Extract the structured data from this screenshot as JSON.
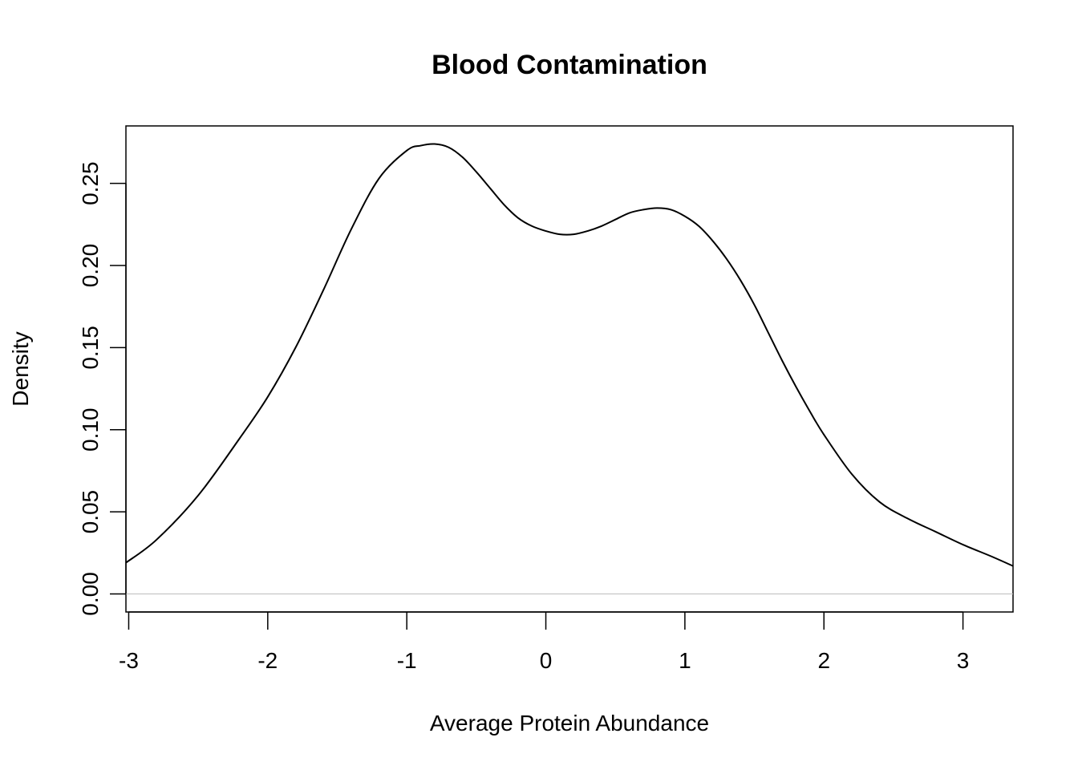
{
  "chart_data": {
    "type": "line",
    "title": "Blood Contamination",
    "xlabel": "Average Protein Abundance",
    "ylabel": "Density",
    "xlim": [
      -3.02,
      3.36
    ],
    "ylim": [
      -0.011,
      0.285
    ],
    "x_ticks": [
      -3,
      -2,
      -1,
      0,
      1,
      2,
      3
    ],
    "x_tick_labels": [
      "-3",
      "-2",
      "-1",
      "0",
      "1",
      "2",
      "3"
    ],
    "y_ticks": [
      0.0,
      0.05,
      0.1,
      0.15,
      0.2,
      0.25
    ],
    "y_tick_labels": [
      "0.00",
      "0.05",
      "0.10",
      "0.15",
      "0.20",
      "0.25"
    ],
    "grid": false,
    "legend": "none",
    "reference_line": {
      "y": 0,
      "color": "#bebebe"
    },
    "series": [
      {
        "color": "#000000",
        "x": [
          -3.02,
          -2.8,
          -2.5,
          -2.2,
          -2.0,
          -1.8,
          -1.6,
          -1.4,
          -1.2,
          -1.0,
          -0.9,
          -0.8,
          -0.7,
          -0.6,
          -0.5,
          -0.4,
          -0.3,
          -0.2,
          -0.1,
          0.0,
          0.1,
          0.2,
          0.3,
          0.4,
          0.5,
          0.6,
          0.7,
          0.8,
          0.9,
          1.0,
          1.1,
          1.2,
          1.3,
          1.4,
          1.5,
          1.6,
          1.7,
          1.8,
          1.9,
          2.0,
          2.2,
          2.4,
          2.6,
          2.8,
          3.0,
          3.2,
          3.36
        ],
        "y": [
          0.019,
          0.033,
          0.06,
          0.095,
          0.12,
          0.15,
          0.185,
          0.222,
          0.253,
          0.27,
          0.273,
          0.274,
          0.272,
          0.266,
          0.257,
          0.247,
          0.237,
          0.229,
          0.224,
          0.221,
          0.219,
          0.219,
          0.221,
          0.224,
          0.228,
          0.232,
          0.234,
          0.235,
          0.234,
          0.23,
          0.224,
          0.215,
          0.204,
          0.191,
          0.176,
          0.159,
          0.142,
          0.126,
          0.111,
          0.097,
          0.073,
          0.056,
          0.046,
          0.038,
          0.03,
          0.023,
          0.017
        ]
      }
    ]
  }
}
